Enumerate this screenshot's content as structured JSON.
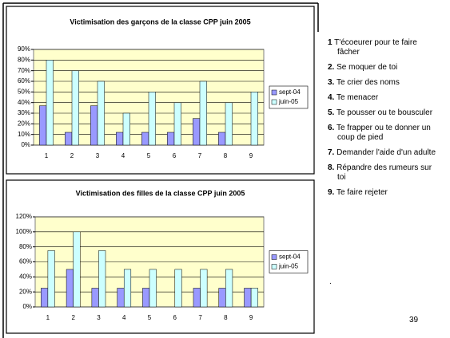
{
  "chart_data": [
    {
      "type": "bar",
      "title": "Victimisation des garçons de la classe CPP juin 2005",
      "categories": [
        "1",
        "2",
        "3",
        "4",
        "5",
        "6",
        "7",
        "8",
        "9"
      ],
      "series": [
        {
          "name": "sept-04",
          "color": "#9999ff",
          "values": [
            37,
            12,
            37,
            12,
            12,
            12,
            25,
            12,
            0
          ]
        },
        {
          "name": "juin-05",
          "color": "#ccffff",
          "values": [
            80,
            70,
            60,
            30,
            50,
            40,
            60,
            40,
            50
          ]
        }
      ],
      "ylim": [
        0,
        90
      ],
      "yticks": [
        {
          "value": 0,
          "label": "0%"
        },
        {
          "value": 10,
          "label": "10%"
        },
        {
          "value": 20,
          "label": "20%"
        },
        {
          "value": 30,
          "label": "30%"
        },
        {
          "value": 40,
          "label": "40%"
        },
        {
          "value": 50,
          "label": "50%"
        },
        {
          "value": 60,
          "label": "60%"
        },
        {
          "value": 70,
          "label": "70%"
        },
        {
          "value": 80,
          "label": "80%"
        },
        {
          "value": 90,
          "label": "90%"
        }
      ],
      "grid": true,
      "legend": "right"
    },
    {
      "type": "bar",
      "title": "Victimisation des filles de la classe CPP juin 2005",
      "categories": [
        "1",
        "2",
        "3",
        "4",
        "5",
        "6",
        "7",
        "8",
        "9"
      ],
      "series": [
        {
          "name": "sept-04",
          "color": "#9999ff",
          "values": [
            25,
            50,
            25,
            25,
            25,
            0,
            25,
            25,
            25
          ]
        },
        {
          "name": "juin-05",
          "color": "#ccffff",
          "values": [
            75,
            100,
            75,
            50,
            50,
            50,
            50,
            50,
            25
          ]
        }
      ],
      "ylim": [
        0,
        120
      ],
      "yticks": [
        {
          "value": 0,
          "label": "0%"
        },
        {
          "value": 20,
          "label": "20%"
        },
        {
          "value": 40,
          "label": "40%"
        },
        {
          "value": 60,
          "label": "60%"
        },
        {
          "value": 80,
          "label": "80%"
        },
        {
          "value": 100,
          "label": "100%"
        },
        {
          "value": 120,
          "label": "120%"
        }
      ],
      "grid": true,
      "legend": "right"
    }
  ],
  "items": [
    {
      "number": "1",
      "text": "T'écoeurer pour te faire fâcher"
    },
    {
      "number": "2.",
      "text": "Se moquer de toi"
    },
    {
      "number": "3.",
      "text": "Te crier des noms"
    },
    {
      "number": "4.",
      "text": "Te menacer"
    },
    {
      "number": "5.",
      "text": "Te pousser ou te bousculer"
    },
    {
      "number": "6.",
      "text": "Te frapper ou te donner un coup de pied"
    },
    {
      "number": "7.",
      "text": "Demander l'aide d'un adulte"
    },
    {
      "number": "8.",
      "text": "Répandre des rumeurs sur toi"
    },
    {
      "number": "9.",
      "text": "Te faire rejeter"
    }
  ],
  "trailing": ".",
  "page_number": "39"
}
